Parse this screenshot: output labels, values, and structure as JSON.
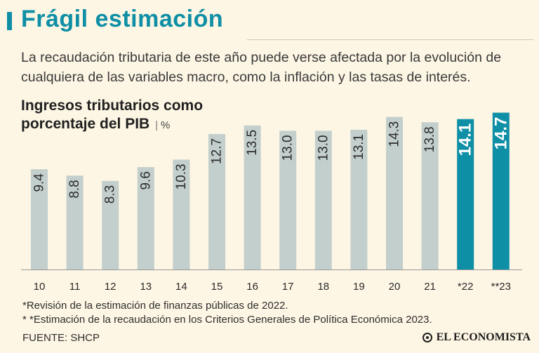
{
  "header": {
    "title": "Frágil estimación",
    "subtitle": "La recaudación tributaria de este año puede verse afectada por la evolución de cualquiera de las variables macro, como la inflación y las tasas de interés."
  },
  "colors": {
    "accent": "#0e8fa6",
    "bar_historic": "#c3cfcd",
    "bar_estimate": "#0e8fa6",
    "background": "#fdf6e4"
  },
  "chart_data": {
    "type": "bar",
    "title_line1": "Ingresos tributarios como",
    "title_line2": "porcentaje del PIB",
    "unit": "%",
    "categories": [
      "10",
      "11",
      "12",
      "13",
      "14",
      "15",
      "16",
      "17",
      "18",
      "19",
      "20",
      "21",
      "*22",
      "**23"
    ],
    "values": [
      9.4,
      8.8,
      8.3,
      9.6,
      10.3,
      12.7,
      13.5,
      13.0,
      13.0,
      13.1,
      14.3,
      13.8,
      14.1,
      14.7
    ],
    "labels": [
      "9.4",
      "8.8",
      "8.3",
      "9.6",
      "10.3",
      "12.7",
      "13.5",
      "13.0",
      "13.0",
      "13.1",
      "14.3",
      "13.8",
      "14.1",
      "14.7"
    ],
    "highlighted": [
      false,
      false,
      false,
      false,
      false,
      false,
      false,
      false,
      false,
      false,
      false,
      false,
      true,
      true
    ],
    "xlabel": "",
    "ylabel": "",
    "ylim": [
      0,
      15
    ]
  },
  "footnotes": {
    "note1": "*Revisión de la estimación de finanzas públicas de 2022.",
    "note2": "* *Estimación de la recaudación en los Criterios Generales de Política Económica 2023.",
    "source": "FUENTE: SHCP"
  },
  "brand": {
    "name": "EL ECONOMISTA"
  }
}
